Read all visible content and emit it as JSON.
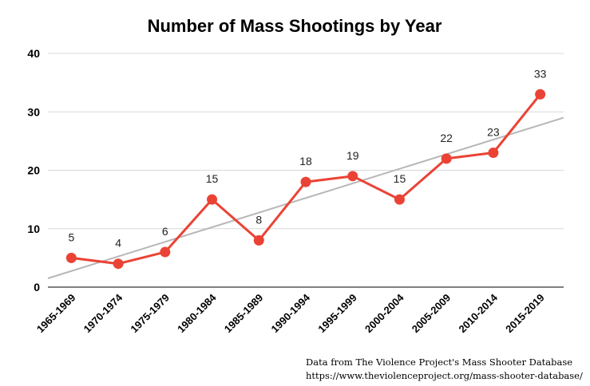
{
  "chart_data": {
    "type": "line",
    "title": "Number of Mass Shootings by Year",
    "categories": [
      "1965-1969",
      "1970-1974",
      "1975-1979",
      "1980-1984",
      "1985-1989",
      "1990-1994",
      "1995-1999",
      "2000-2004",
      "2005-2009",
      "2010-2014",
      "2015-2019"
    ],
    "series": [
      {
        "values": [
          5,
          4,
          6,
          15,
          8,
          18,
          19,
          15,
          22,
          23,
          33
        ],
        "color": "#ea4335"
      }
    ],
    "trendline": {
      "start": 1.5,
      "end": 29,
      "color": "#b7b7b7"
    },
    "ylim": [
      0,
      40
    ],
    "yticks": [
      0,
      10,
      20,
      30,
      40
    ],
    "grid": true,
    "data_labels": true
  },
  "source": {
    "line1": "Data from The Violence Project's Mass Shooter Database",
    "line2": "https://www.theviolenceproject.org/mass-shooter-database/"
  }
}
